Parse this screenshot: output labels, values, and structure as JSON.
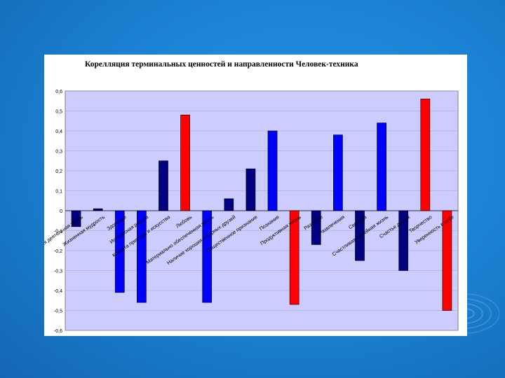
{
  "chart_data": {
    "type": "bar",
    "title": "Корелляция терминальных ценностей и направленности Человек-техника",
    "xlabel": "",
    "ylabel": "",
    "ylim": [
      -0.6,
      0.6
    ],
    "yticks": [
      0.6,
      0.5,
      0.4,
      0.3,
      0.2,
      0.1,
      0,
      -0.1,
      -0.2,
      -0.3,
      -0.4,
      -0.5,
      -0.6
    ],
    "ytick_labels": [
      "0,6",
      "0,5",
      "0,4",
      "0,3",
      "0,2",
      "0,1",
      "0",
      "-0,1",
      "-0,2",
      "-0,3",
      "-0,4",
      "-0,5",
      "-0,6"
    ],
    "grid": true,
    "categories": [
      "Активная деятельная жизнь",
      "Жизненная мудрость",
      "Здоровье",
      "Интересная работа",
      "Красота природы и искусства",
      "Любовь",
      "Материально обеспеченная жизнь",
      "Наличие хороших и верных друзей",
      "Общественное признание",
      "Познание",
      "Продуктивная жизнь",
      "Развитие",
      "Развлечения",
      "Свобода",
      "Счастливая семейная жизнь",
      "Счастье других",
      "Творчество",
      "Уверенность в себе"
    ],
    "values": [
      -0.08,
      0.01,
      -0.41,
      -0.46,
      0.25,
      0.48,
      -0.46,
      0.06,
      0.21,
      0.4,
      -0.47,
      -0.17,
      0.38,
      -0.25,
      0.44,
      -0.3,
      0.56,
      -0.5
    ],
    "bar_colors": [
      "#000080",
      "#000080",
      "#0000FF",
      "#0000FF",
      "#000080",
      "#FF0000",
      "#0000FF",
      "#000080",
      "#000080",
      "#0000FF",
      "#FF0000",
      "#000080",
      "#0000FF",
      "#000080",
      "#0000FF",
      "#000080",
      "#FF0000",
      "#FF0000"
    ],
    "plot_background": "#CCCCFF",
    "label_position": "rotated, at zero line"
  },
  "colors": {
    "slide_background": "#1a7fd0",
    "chart_frame": "#ffffff",
    "navy": "#000080",
    "blue": "#0000FF",
    "red": "#FF0000"
  }
}
